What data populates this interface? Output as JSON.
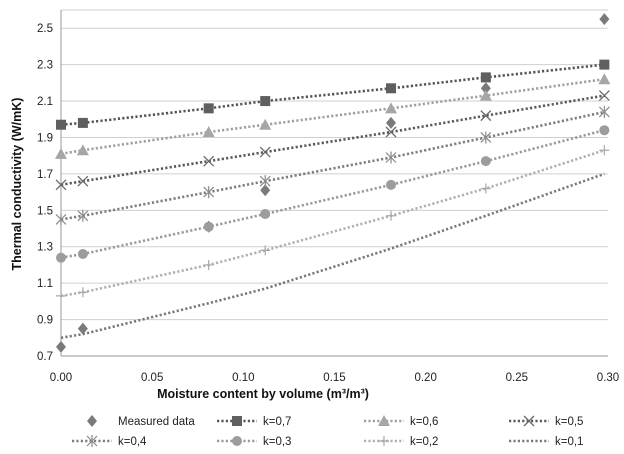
{
  "chart_data": {
    "type": "scatter",
    "xlabel": "Moisture content by volume",
    "xlabel_unit": "(m³/m³)",
    "ylabel": "Thermal conductivity (W/mK)",
    "xlim": [
      0,
      0.3
    ],
    "ylim": [
      0.7,
      2.6
    ],
    "xticks": [
      "0.00",
      "0.05",
      "0.10",
      "0.15",
      "0.20",
      "0.25",
      "0.30"
    ],
    "yticks": [
      "0.7",
      "0.9",
      "1.1",
      "1.3",
      "1.5",
      "1.7",
      "1.9",
      "2.1",
      "2.3",
      "2.5"
    ],
    "grid": "horizontal",
    "legend_position": "bottom",
    "x": [
      0.0,
      0.012,
      0.081,
      0.112,
      0.181,
      0.233,
      0.298
    ],
    "series": [
      {
        "name": "Measured data",
        "marker": "diamond",
        "color": "#7a7a7a",
        "line": "none",
        "values": [
          0.75,
          0.85,
          1.41,
          1.61,
          1.98,
          2.17,
          2.55
        ]
      },
      {
        "name": "k=0,7",
        "marker": "square",
        "color": "#5f5f5f",
        "line": "dotted",
        "line_color": "#555555",
        "values": [
          1.97,
          1.98,
          2.06,
          2.1,
          2.17,
          2.23,
          2.3
        ]
      },
      {
        "name": "k=0,6",
        "marker": "triangle",
        "color": "#a6a6a6",
        "line": "dotted",
        "line_color": "#a0a0a0",
        "values": [
          1.81,
          1.83,
          1.93,
          1.97,
          2.06,
          2.13,
          2.22
        ]
      },
      {
        "name": "k=0,5",
        "marker": "x",
        "color": "#6a6a6a",
        "line": "dotted",
        "line_color": "#5a5a5a",
        "values": [
          1.64,
          1.66,
          1.77,
          1.82,
          1.93,
          2.02,
          2.13
        ]
      },
      {
        "name": "k=0,4",
        "marker": "asterisk",
        "color": "#8a8a8a",
        "line": "dotted",
        "line_color": "#7e7e7e",
        "values": [
          1.45,
          1.47,
          1.6,
          1.66,
          1.79,
          1.9,
          2.04
        ]
      },
      {
        "name": "k=0,3",
        "marker": "circle",
        "color": "#9c9c9c",
        "line": "dotted",
        "line_color": "#9a9a9a",
        "values": [
          1.24,
          1.26,
          1.41,
          1.48,
          1.64,
          1.77,
          1.94
        ]
      },
      {
        "name": "k=0,2",
        "marker": "plus",
        "color": "#a8a8a8",
        "line": "dotted",
        "line_color": "#b0b0b0",
        "values": [
          1.03,
          1.05,
          1.2,
          1.28,
          1.47,
          1.62,
          1.83
        ]
      },
      {
        "name": "k=0,1",
        "marker": "none",
        "color": "#8a8a8a",
        "line": "dotted",
        "line_color": "#7a7a7a",
        "values": [
          0.8,
          0.82,
          0.99,
          1.07,
          1.29,
          1.47,
          1.7
        ]
      }
    ]
  }
}
